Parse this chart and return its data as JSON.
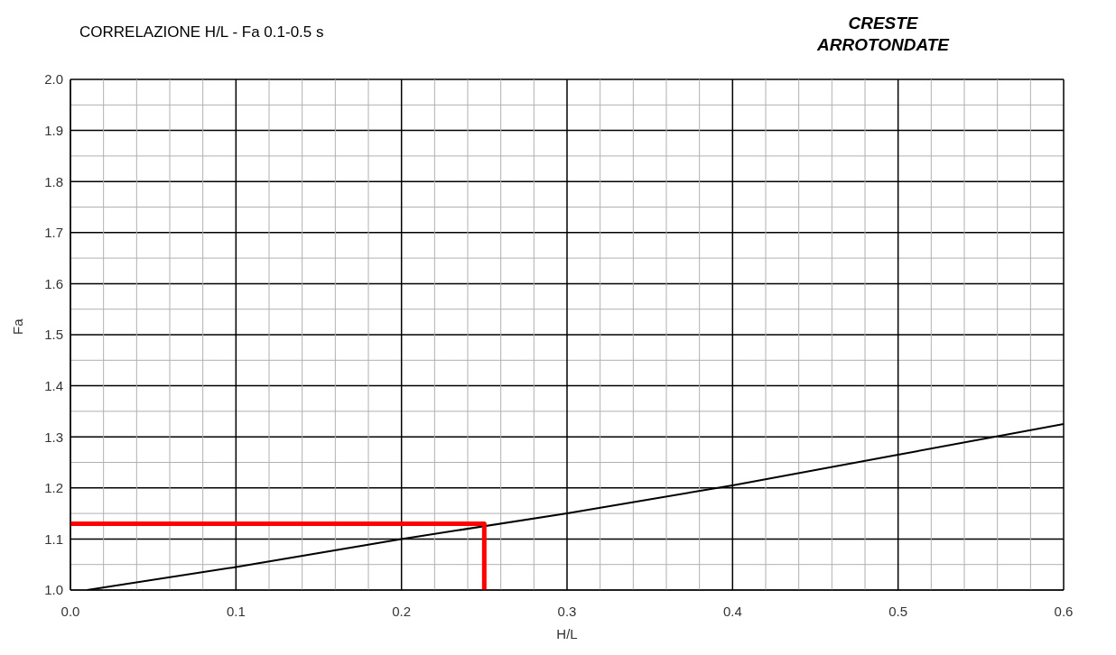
{
  "chart_data": {
    "type": "line",
    "title": "CORRELAZIONE H/L - Fa 0.1-0.5 s",
    "annotations": [
      "CRESTE\nARROTONDATE"
    ],
    "xlabel": "H/L",
    "ylabel": "Fa",
    "series": [
      {
        "color": "#000000",
        "x": [
          0.01,
          0.1,
          0.2,
          0.3,
          0.4,
          0.5,
          0.6
        ],
        "values": [
          1.0,
          1.045,
          1.1,
          1.15,
          1.205,
          1.265,
          1.325
        ]
      },
      {
        "color": "#ff0000",
        "x": [
          0,
          0.25,
          0.25
        ],
        "values": [
          1.13,
          1.13,
          1.0
        ]
      }
    ],
    "xlim": [
      0,
      0.6
    ],
    "ylim": [
      1.0,
      2.0
    ],
    "xticks": [
      {
        "value": 0,
        "label": "0.0"
      },
      {
        "value": 0.02,
        "label": null
      },
      {
        "value": 0.04,
        "label": null
      },
      {
        "value": 0.06,
        "label": null
      },
      {
        "value": 0.08,
        "label": null
      },
      0.1,
      {
        "value": 0.12,
        "label": null
      },
      {
        "value": 0.14,
        "label": null
      },
      {
        "value": 0.16,
        "label": null
      },
      {
        "value": 0.18,
        "label": null
      },
      0.2,
      {
        "value": 0.22,
        "label": null
      },
      {
        "value": 0.24,
        "label": null
      },
      {
        "value": 0.26,
        "label": null
      },
      {
        "value": 0.28,
        "label": null
      },
      0.3,
      {
        "value": 0.32,
        "label": null
      },
      {
        "value": 0.34,
        "label": null
      },
      {
        "value": 0.36,
        "label": null
      },
      {
        "value": 0.38,
        "label": null
      },
      0.4,
      {
        "value": 0.42,
        "label": null
      },
      {
        "value": 0.44,
        "label": null
      },
      {
        "value": 0.46,
        "label": null
      },
      {
        "value": 0.48,
        "label": null
      },
      0.5,
      {
        "value": 0.52,
        "label": null
      },
      {
        "value": 0.54,
        "label": null
      },
      {
        "value": 0.56,
        "label": null
      },
      {
        "value": 0.58,
        "label": null
      },
      0.6
    ],
    "yticks": [
      {
        "value": 1.0,
        "label": "1.0"
      },
      {
        "value": 1.05,
        "label": null
      },
      1.1,
      {
        "value": 1.15,
        "label": null
      },
      1.2,
      {
        "value": 1.25,
        "label": null
      },
      1.3,
      {
        "value": 1.35,
        "label": null
      },
      1.4,
      {
        "value": 1.45,
        "label": null
      },
      1.5,
      {
        "value": 1.55,
        "label": null
      },
      1.6,
      {
        "value": 1.65,
        "label": null
      },
      1.7,
      {
        "value": 1.75,
        "label": null
      },
      1.8,
      {
        "value": 1.85,
        "label": null
      },
      1.9,
      {
        "value": 1.95,
        "label": null
      },
      {
        "value": 2.0,
        "label": "2.0"
      }
    ],
    "grid": true,
    "marker": "none",
    "line_style": "solid"
  }
}
